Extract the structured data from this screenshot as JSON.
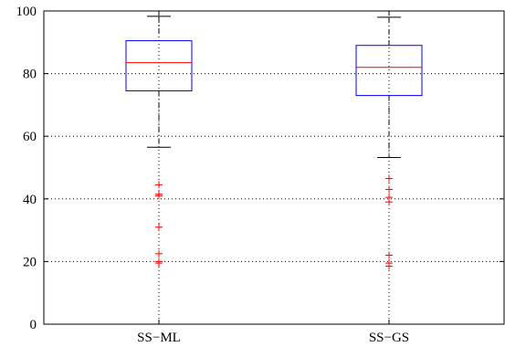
{
  "chart_data": {
    "type": "box",
    "title": "",
    "xlabel": "",
    "ylabel": "",
    "ylim": [
      0,
      100
    ],
    "yticks": [
      0,
      20,
      40,
      60,
      80,
      100
    ],
    "grid": true,
    "categories": [
      "SS−ML",
      "SS−GS"
    ],
    "boxes": [
      {
        "category": "SS−ML",
        "whisker_low": 56.5,
        "q1": 74.5,
        "median": 83.5,
        "q3": 90.5,
        "whisker_high": 98.3,
        "outliers": [
          44.5,
          41.5,
          41.0,
          31.0,
          22.5,
          20.0,
          19.5
        ]
      },
      {
        "category": "SS−GS",
        "whisker_low": 53.2,
        "q1": 73.0,
        "median": 82.0,
        "q3": 89.0,
        "whisker_high": 98.0,
        "outliers": [
          46.5,
          43.0,
          40.5,
          39.0,
          22.0,
          19.5,
          18.5
        ]
      }
    ],
    "colors": {
      "box": "#0000ff",
      "median": "#ff0000",
      "whisker": "#000000",
      "outlier": "#ff0000",
      "grid": "#000000"
    }
  }
}
